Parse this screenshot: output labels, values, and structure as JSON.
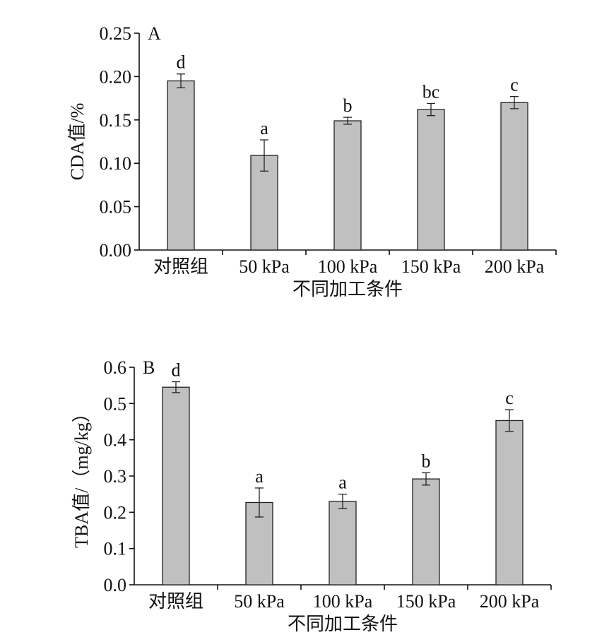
{
  "chart_data": [
    {
      "type": "bar",
      "panel_label": "A",
      "categories": [
        "对照组",
        "50 kPa",
        "100 kPa",
        "150 kPa",
        "200 kPa"
      ],
      "values": [
        0.195,
        0.109,
        0.149,
        0.162,
        0.17
      ],
      "errors": [
        0.008,
        0.018,
        0.004,
        0.007,
        0.007
      ],
      "significance": [
        "d",
        "a",
        "b",
        "bc",
        "c"
      ],
      "ylabel": "CDA值/%",
      "xlabel": "不同加工条件",
      "ylim": [
        0,
        0.25
      ],
      "yticks": [
        "0.00",
        "0.05",
        "0.10",
        "0.15",
        "0.20",
        "0.25"
      ],
      "bar_color": "#c0c0c0",
      "grid": false
    },
    {
      "type": "bar",
      "panel_label": "B",
      "categories": [
        "对照组",
        "50 kPa",
        "100 kPa",
        "150 kPa",
        "200 kPa"
      ],
      "values": [
        0.545,
        0.227,
        0.23,
        0.292,
        0.453
      ],
      "errors": [
        0.015,
        0.04,
        0.02,
        0.017,
        0.03
      ],
      "significance": [
        "d",
        "a",
        "a",
        "b",
        "c"
      ],
      "ylabel": "TBA值/（mg/kg）",
      "xlabel": "不同加工条件",
      "ylim": [
        0,
        0.6
      ],
      "yticks": [
        "0.0",
        "0.1",
        "0.2",
        "0.3",
        "0.4",
        "0.5",
        "0.6"
      ],
      "bar_color": "#c0c0c0",
      "grid": false
    }
  ]
}
